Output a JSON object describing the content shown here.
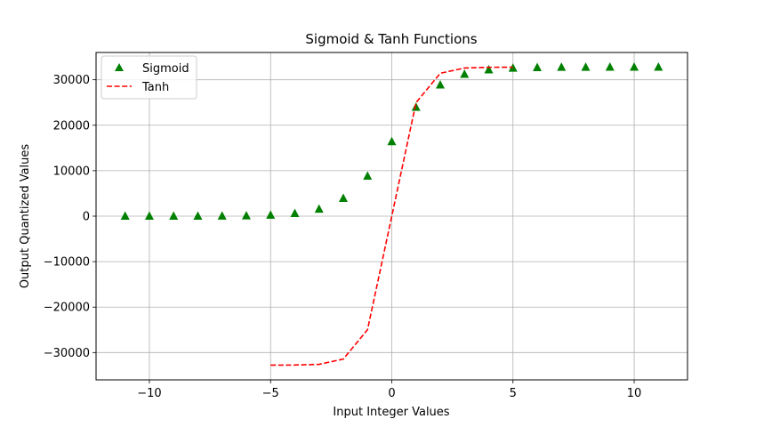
{
  "chart_data": {
    "type": "line",
    "title": "Sigmoid & Tanh Functions",
    "xlabel": "Input Integer Values",
    "ylabel": "Output Quantized Values",
    "xlim": [
      -12.2,
      12.2
    ],
    "ylim": [
      -36000,
      36000
    ],
    "xticks": [
      -10,
      -5,
      0,
      5,
      10
    ],
    "xtick_labels": [
      "−10",
      "−5",
      "0",
      "5",
      "10"
    ],
    "yticks": [
      -30000,
      -20000,
      -10000,
      0,
      10000,
      20000,
      30000
    ],
    "ytick_labels": [
      "−30000",
      "−20000",
      "−10000",
      "0",
      "10000",
      "20000",
      "30000"
    ],
    "grid": true,
    "legend_position": "top-left",
    "series": [
      {
        "name": "Sigmoid",
        "style": "markers",
        "marker": "triangle",
        "color": "#008000",
        "x": [
          -11,
          -10,
          -9,
          -8,
          -7,
          -6,
          -5,
          -4,
          -3,
          -2,
          -1,
          0,
          1,
          2,
          3,
          4,
          5,
          6,
          7,
          8,
          9,
          10,
          11
        ],
        "y": [
          0,
          1,
          4,
          11,
          30,
          81,
          219,
          590,
          1550,
          3906,
          8812,
          16384,
          23955,
          28861,
          31217,
          32177,
          32548,
          32686,
          32737,
          32756,
          32763,
          32766,
          32767
        ]
      },
      {
        "name": "Tanh",
        "style": "dashed",
        "color": "#ff0000",
        "x": [
          -5,
          -4,
          -3,
          -2,
          -1,
          0,
          1,
          2,
          3,
          4,
          5
        ],
        "y": [
          -32764,
          -32745,
          -32588,
          -31432,
          -24955,
          0,
          24955,
          31432,
          32588,
          32745,
          32764
        ]
      }
    ]
  }
}
